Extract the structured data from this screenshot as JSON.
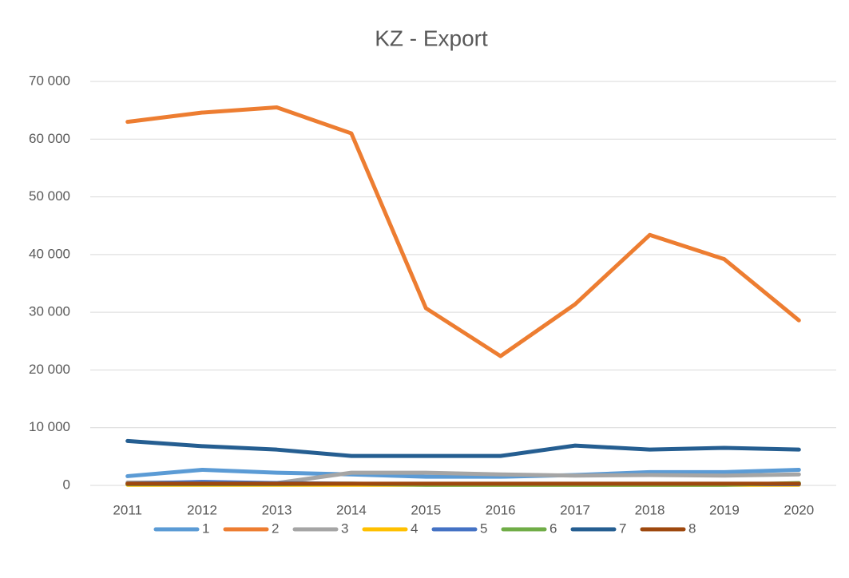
{
  "chart_data": {
    "type": "line",
    "title": "KZ - Export",
    "categories": [
      "2011",
      "2012",
      "2013",
      "2014",
      "2015",
      "2016",
      "2017",
      "2018",
      "2019",
      "2020"
    ],
    "series": [
      {
        "name": "1",
        "color": "#5b9bd5",
        "values": [
          1600,
          2700,
          2200,
          1900,
          1500,
          1500,
          1800,
          2300,
          2300,
          2700
        ]
      },
      {
        "name": "2",
        "color": "#ed7d31",
        "values": [
          63000,
          64600,
          65500,
          61000,
          30700,
          22400,
          31400,
          43400,
          39200,
          28600
        ]
      },
      {
        "name": "3",
        "color": "#a5a5a5",
        "values": [
          500,
          500,
          400,
          2200,
          2200,
          1900,
          1700,
          1800,
          1700,
          1900
        ]
      },
      {
        "name": "4",
        "color": "#ffc000",
        "values": [
          100,
          100,
          100,
          100,
          100,
          100,
          100,
          100,
          100,
          100
        ]
      },
      {
        "name": "5",
        "color": "#4472c4",
        "values": [
          300,
          600,
          400,
          300,
          200,
          200,
          200,
          200,
          200,
          200
        ]
      },
      {
        "name": "6",
        "color": "#70ad47",
        "values": [
          200,
          200,
          200,
          300,
          100,
          100,
          100,
          100,
          100,
          400
        ]
      },
      {
        "name": "7",
        "color": "#255e91",
        "values": [
          7700,
          6800,
          6200,
          5100,
          5100,
          5100,
          6900,
          6200,
          6500,
          6200
        ]
      },
      {
        "name": "8",
        "color": "#9e480e",
        "values": [
          300,
          300,
          300,
          300,
          300,
          300,
          300,
          300,
          300,
          300
        ]
      }
    ],
    "ylim": [
      0,
      70000
    ],
    "yticks": [
      {
        "value": 0,
        "label": "0"
      },
      {
        "value": 10000,
        "label": "10 000"
      },
      {
        "value": 20000,
        "label": "20 000"
      },
      {
        "value": 30000,
        "label": "30 000"
      },
      {
        "value": 40000,
        "label": "40 000"
      },
      {
        "value": 50000,
        "label": "50 000"
      },
      {
        "value": 60000,
        "label": "60 000"
      },
      {
        "value": 70000,
        "label": "70 000"
      }
    ],
    "grid": true,
    "legend": "bottom"
  }
}
